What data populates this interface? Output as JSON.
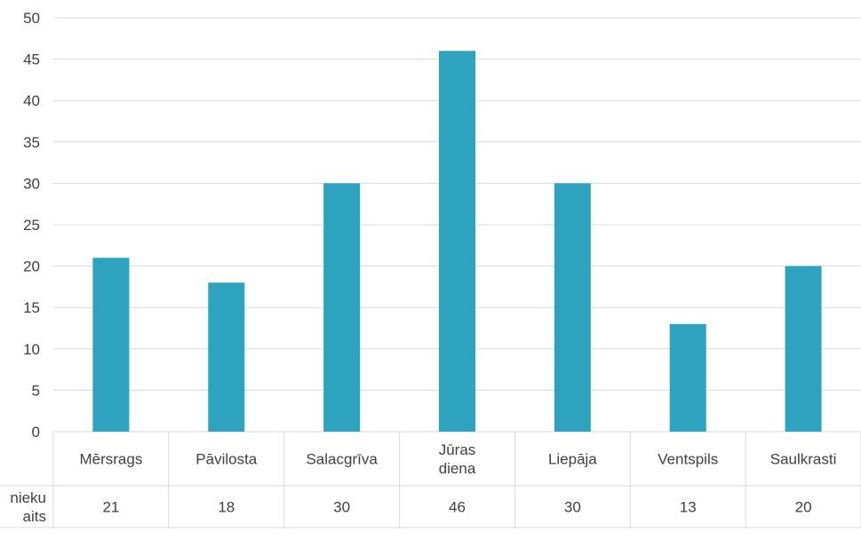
{
  "chart_data": {
    "type": "bar",
    "categories": [
      [
        "Mērsrags"
      ],
      [
        "Pāvilosta"
      ],
      [
        "Salacgrīva"
      ],
      [
        "Jūras",
        "diena"
      ],
      [
        "Liepāja"
      ],
      [
        "Ventspils"
      ],
      [
        "Saulkrasti"
      ]
    ],
    "series": [
      {
        "name": [
          "nieku",
          "aits"
        ],
        "values": [
          21,
          18,
          30,
          46,
          30,
          13,
          20
        ],
        "color": "#2ea3bf"
      }
    ],
    "ylim": [
      0,
      50
    ],
    "yticks": [
      0,
      5,
      10,
      15,
      20,
      25,
      30,
      35,
      40,
      45,
      50
    ],
    "grid": true,
    "data_table": true,
    "title": "",
    "xlabel": "",
    "ylabel": ""
  }
}
